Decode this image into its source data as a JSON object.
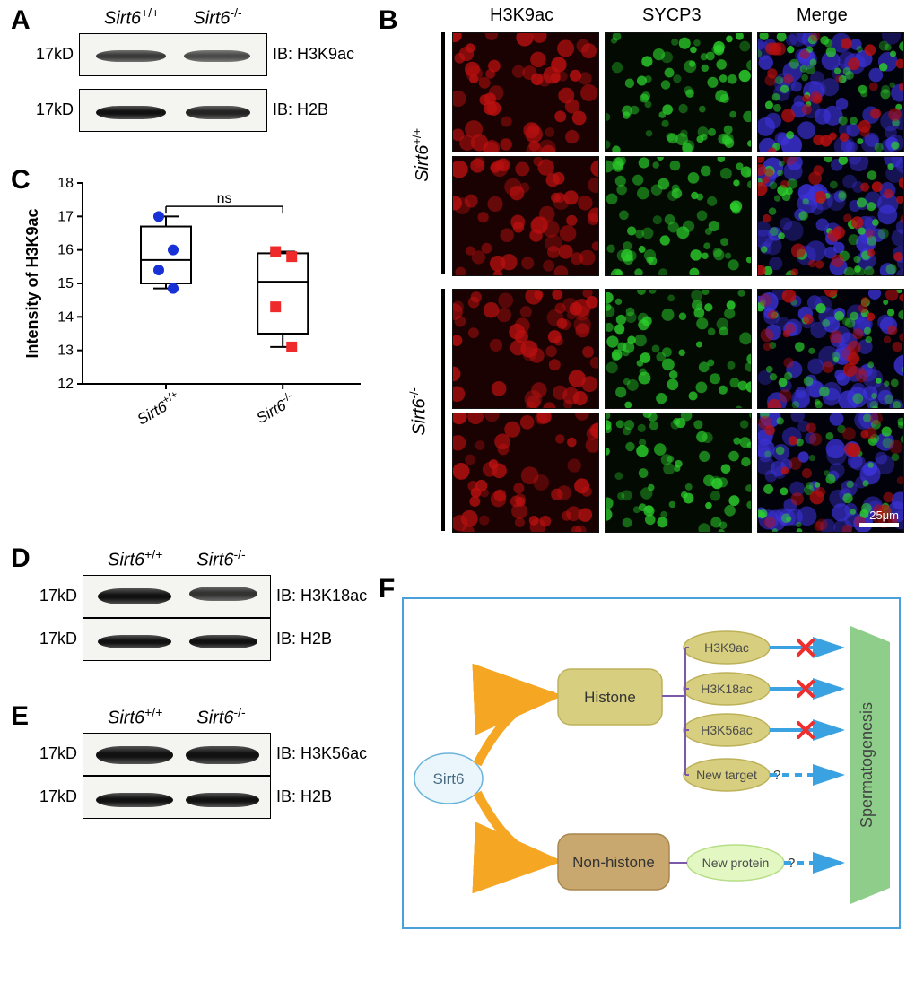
{
  "panels": {
    "A": "A",
    "B": "B",
    "C": "C",
    "D": "D",
    "E": "E",
    "F": "F"
  },
  "genotypes": {
    "wt": "Sirt6",
    "wt_sup": "+/+",
    "ko": "Sirt6",
    "ko_sup": "-/-"
  },
  "size_label": "17kD",
  "blots": {
    "A": {
      "top_ib": "IB: H3K9ac",
      "bot_ib": "IB: H2B"
    },
    "D": {
      "top_ib": "IB: H3K18ac",
      "bot_ib": "IB: H2B"
    },
    "E": {
      "top_ib": "IB: H3K56ac",
      "bot_ib": "IB: H2B"
    }
  },
  "panelB": {
    "col1": "H3K9ac",
    "col2": "SYCP3",
    "col3": "Merge",
    "scale_label": "25μm"
  },
  "panelC": {
    "ylabel": "Intensity of H3K9ac",
    "ns": "ns",
    "ylim": [
      12,
      18
    ],
    "yticks": [
      12,
      13,
      14,
      15,
      16,
      17,
      18
    ],
    "wt_points": [
      17.0,
      16.0,
      15.4,
      14.85
    ],
    "ko_points": [
      15.95,
      15.8,
      14.3,
      13.1
    ],
    "wt_box": {
      "min": 14.85,
      "q1": 15.0,
      "median": 15.7,
      "q3": 16.7,
      "max": 17.0
    },
    "ko_box": {
      "min": 13.1,
      "q1": 13.5,
      "median": 15.05,
      "q3": 15.9,
      "max": 15.95
    },
    "wt_marker_color": "#1731d6",
    "ko_marker_color": "#ee2a2a",
    "axis_color": "#000000"
  },
  "panelF": {
    "sirt6": "Sirt6",
    "histone": "Histone",
    "nonhistone": "Non-histone",
    "h3k9": "H3K9ac",
    "h3k18": "H3K18ac",
    "h3k56": "H3K56ac",
    "new_target": "New target",
    "q": "?",
    "new_protein": "New protein",
    "spermatogenesis": "Spermatogenesis",
    "colors": {
      "sirt6_fill": "#eaf6fc",
      "sirt6_stroke": "#6bb3d9",
      "histone_fill": "#d7cf7f",
      "histone_stroke": "#bdb15a",
      "nonhistone_fill": "#c9a86f",
      "nonhistone_stroke": "#a8864e",
      "oval_fill": "#d7cf7f",
      "oval_stroke": "#bdb15a",
      "oval_text": "#4a4a4a",
      "newprot_fill": "#e3f7c3",
      "newprot_stroke": "#b6de86",
      "newprot_text": "#4a4a4a",
      "sperma_fill": "#8fce8a",
      "sperma_text": "#424242",
      "arrow": "#3aa2e0",
      "arrow_orange": "#f5a623",
      "cross": "#ef2e2e",
      "dash": "#3aa2e0"
    },
    "font_size": 16
  },
  "if_tiles": {
    "h3k9_bg": "#1a0202",
    "sy_bg": "#020a02",
    "h3k9_dot": "#b91010",
    "sy_dot": "#2cce2c",
    "merge_blue": "#3b32d6"
  }
}
